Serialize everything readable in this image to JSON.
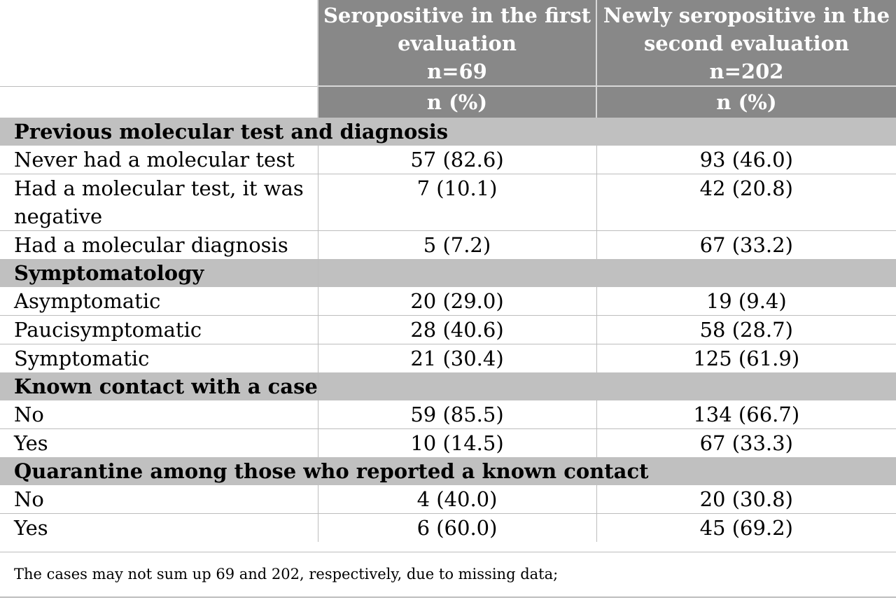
{
  "header": {
    "col1_lines": [
      "Seropositive in the first",
      "evaluation",
      "n=69"
    ],
    "col2_lines": [
      "Newly seropositive in the",
      "second evaluation",
      "n=202"
    ],
    "unit1": "n (%)",
    "unit2": "n (%)"
  },
  "sections": [
    {
      "title": "Previous molecular test and diagnosis",
      "rows": [
        {
          "label": "Never had a molecular test",
          "v1": "57 (82.6)",
          "v2": "93 (46.0)"
        },
        {
          "label_lines": [
            "Had a molecular test, it was",
            "negative"
          ],
          "v1": "7 (10.1)",
          "v2": "42 (20.8)"
        },
        {
          "label": "Had a molecular diagnosis",
          "v1": "5 (7.2)",
          "v2": "67 (33.2)"
        }
      ]
    },
    {
      "title": "Symptomatology",
      "rows": [
        {
          "label": "Asymptomatic",
          "v1": "20 (29.0)",
          "v2": "19 (9.4)"
        },
        {
          "label": "Paucisymptomatic",
          "v1": "28 (40.6)",
          "v2": "58 (28.7)"
        },
        {
          "label": "Symptomatic",
          "v1": "21 (30.4)",
          "v2": "125 (61.9)"
        }
      ]
    },
    {
      "title": "Known contact with a case",
      "rows": [
        {
          "label": "No",
          "v1": "59 (85.5)",
          "v2": "134 (66.7)"
        },
        {
          "label": "Yes",
          "v1": "10 (14.5)",
          "v2": "67 (33.3)"
        }
      ]
    },
    {
      "title": "Quarantine among those who reported a known contact",
      "rows": [
        {
          "label": "No",
          "v1": "4 (40.0)",
          "v2": "20 (30.8)"
        },
        {
          "label": "Yes",
          "v1": "6 (60.0)",
          "v2": "45 (69.2)"
        }
      ]
    }
  ],
  "footnote": "The cases may not sum up 69 and 202, respectively, due to missing data;"
}
